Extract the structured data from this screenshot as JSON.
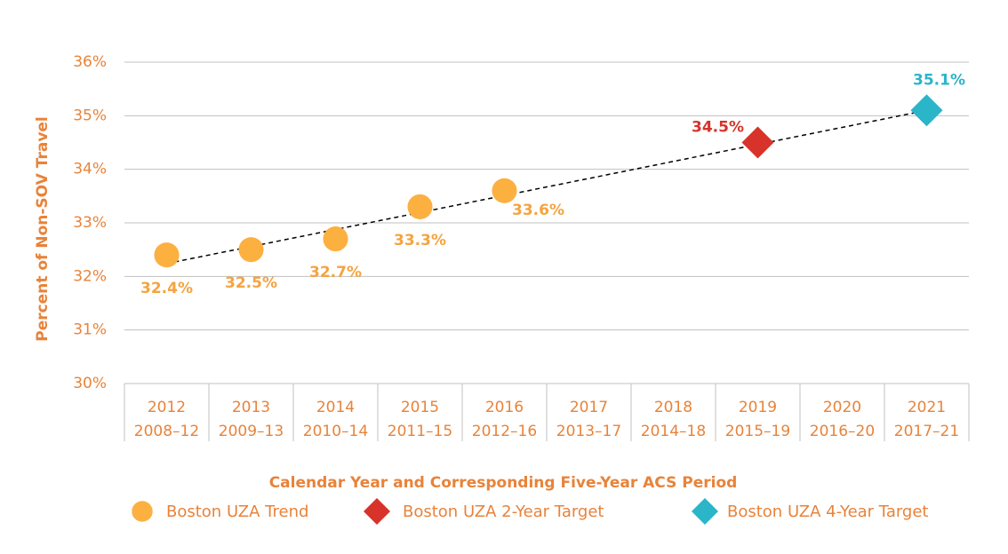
{
  "chart_data": {
    "type": "scatter",
    "y_axis_title": "Percent of Non-SOV Travel",
    "x_axis_title": "Calendar Year and Corresponding Five-Year ACS Period",
    "categories": [
      "2012",
      "2013",
      "2014",
      "2015",
      "2016",
      "2017",
      "2018",
      "2019",
      "2020",
      "2021"
    ],
    "period_labels": [
      "2008–12",
      "2009–13",
      "2010–14",
      "2011–15",
      "2012–16",
      "2013–17",
      "2014–18",
      "2015–19",
      "2016–20",
      "2017–21"
    ],
    "ylim": [
      30,
      36
    ],
    "yticks": [
      {
        "value": 30,
        "label": "30%"
      },
      {
        "value": 31,
        "label": "31%"
      },
      {
        "value": 32,
        "label": "32%"
      },
      {
        "value": 33,
        "label": "33%"
      },
      {
        "value": 34,
        "label": "34%"
      },
      {
        "value": 35,
        "label": "35%"
      },
      {
        "value": 36,
        "label": "36%"
      }
    ],
    "grid": true,
    "series": [
      {
        "name": "Boston UZA Trend",
        "marker": "circle",
        "color": "#fbb040",
        "label_color": "#f5a340",
        "values": [
          32.4,
          32.5,
          32.7,
          33.3,
          33.6,
          null,
          null,
          null,
          null,
          null
        ],
        "value_labels": [
          "32.4%",
          "32.5%",
          "32.7%",
          "33.3%",
          "33.6%",
          null,
          null,
          null,
          null,
          null
        ]
      },
      {
        "name": "Boston UZA 2-Year Target",
        "marker": "diamond",
        "color": "#d7332a",
        "label_color": "#d7332a",
        "values": [
          null,
          null,
          null,
          null,
          null,
          null,
          null,
          34.5,
          null,
          null
        ],
        "value_labels": [
          null,
          null,
          null,
          null,
          null,
          null,
          null,
          "34.5%",
          null,
          null
        ]
      },
      {
        "name": "Boston UZA 4-Year Target",
        "marker": "diamond",
        "color": "#2bb5c8",
        "label_color": "#2bb5c8",
        "values": [
          null,
          null,
          null,
          null,
          null,
          null,
          null,
          null,
          null,
          35.1
        ],
        "value_labels": [
          null,
          null,
          null,
          null,
          null,
          null,
          null,
          null,
          null,
          "35.1%"
        ]
      }
    ],
    "trendline": {
      "x": [
        0,
        9
      ],
      "values": [
        32.24,
        35.1
      ],
      "style": "dashed",
      "color": "#000000"
    }
  }
}
